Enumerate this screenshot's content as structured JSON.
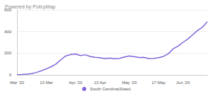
{
  "chart_data": {
    "type": "line",
    "title": "Powered by PolicyMap",
    "categories": [
      "Mar '20",
      null,
      null,
      null,
      null,
      null,
      "13 Mar",
      null,
      null,
      null,
      null,
      null,
      "Apr '20",
      null,
      null,
      null,
      null,
      "13 Apr",
      null,
      null,
      null,
      null,
      null,
      "May '20",
      null,
      null,
      null,
      null,
      null,
      "17 May",
      null,
      null,
      null,
      null,
      "Jun '20",
      null,
      null,
      null,
      null,
      null
    ],
    "series": [
      {
        "name": "South Carolina(State)",
        "color": "#8064d8",
        "values": [
          2,
          3,
          6,
          12,
          22,
          38,
          55,
          75,
          100,
          140,
          175,
          188,
          192,
          178,
          185,
          170,
          162,
          158,
          150,
          155,
          148,
          152,
          165,
          175,
          168,
          160,
          162,
          150,
          152,
          158,
          170,
          195,
          240,
          265,
          300,
          330,
          370,
          410,
          440,
          490
        ]
      }
    ],
    "ylim": [
      0,
      600
    ],
    "yticks": [
      0,
      200,
      400,
      600
    ],
    "grid": true,
    "legend": "bottom"
  }
}
